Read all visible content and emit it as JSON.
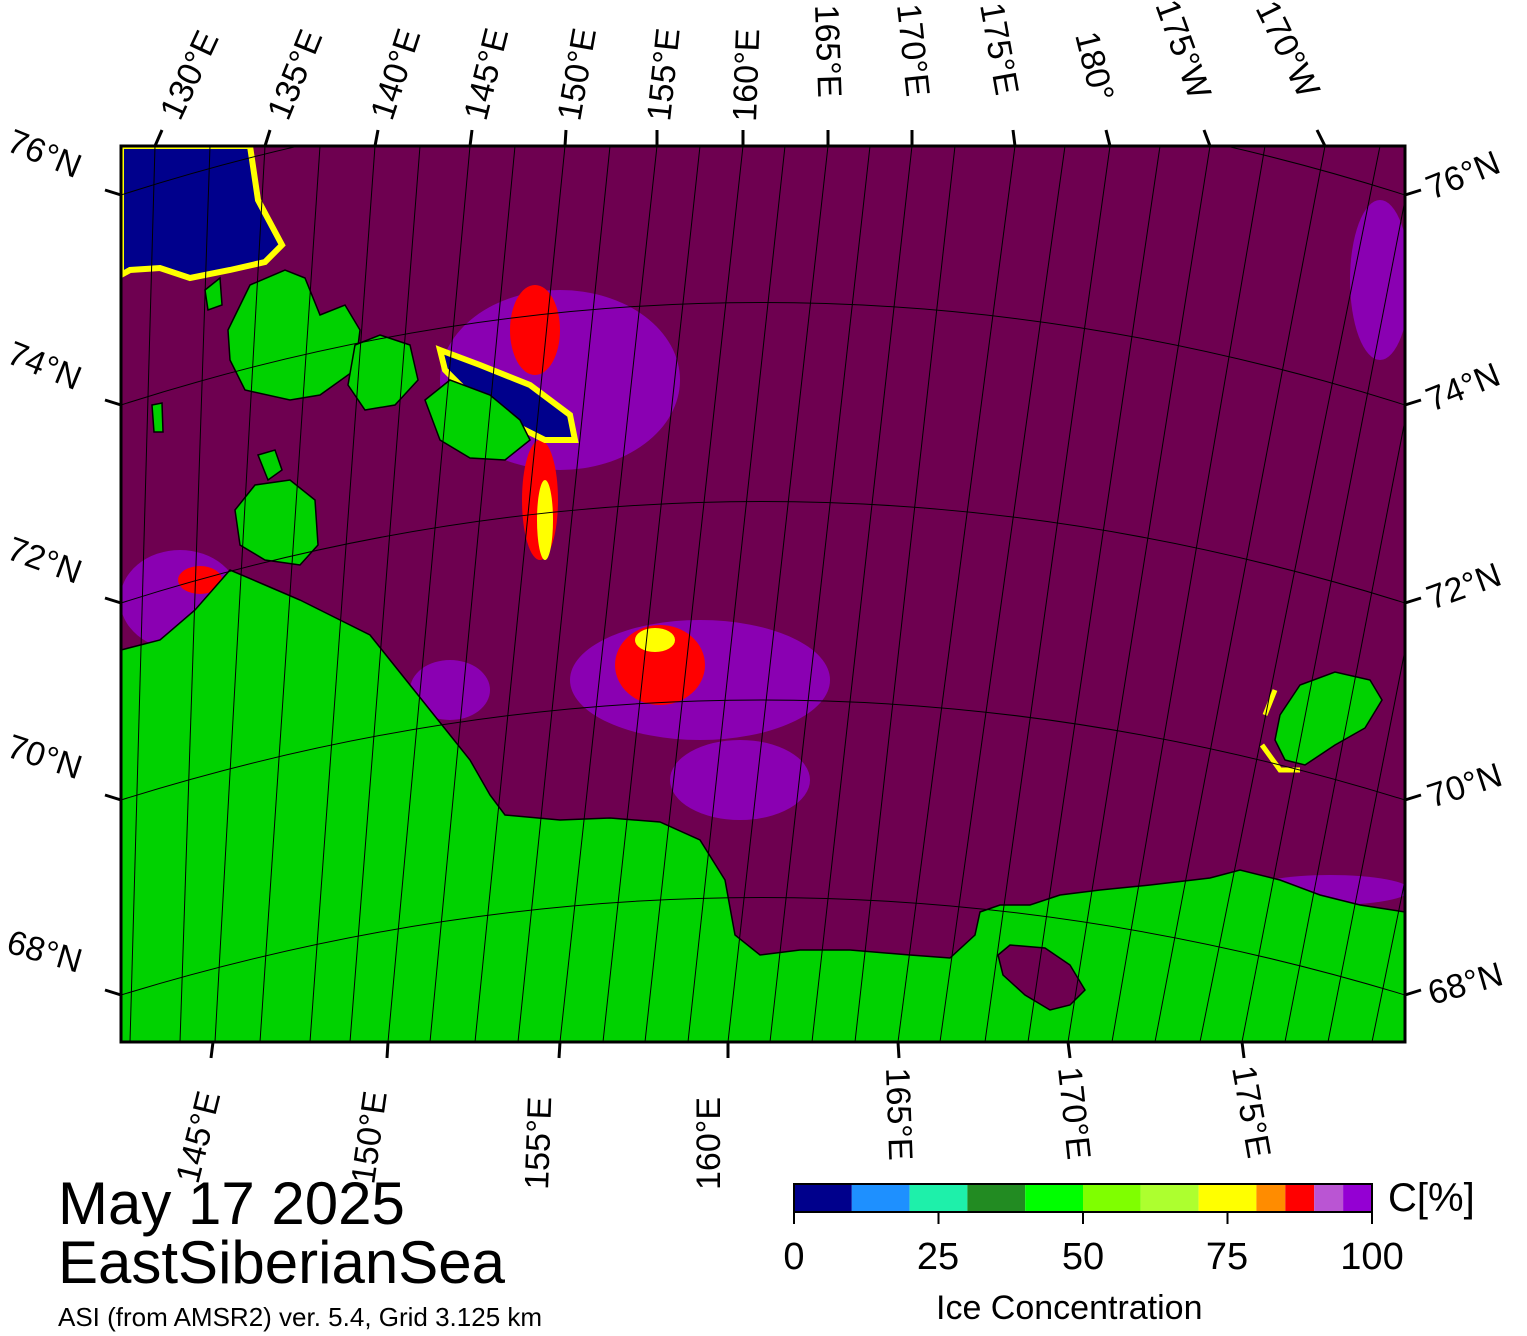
{
  "title": {
    "date": "May 17 2025",
    "region": "EastSiberianSea",
    "product": "ASI (from AMSR2) ver. 5.4,  Grid 3.125 km"
  },
  "map": {
    "top_longitude_labels": [
      "130°E",
      "135°E",
      "140°E",
      "145°E",
      "150°E",
      "155°E",
      "160°E",
      "165°E",
      "170°E",
      "175°E",
      "180°",
      "175°W",
      "170°W"
    ],
    "bottom_longitude_labels": [
      "145°E",
      "150°E",
      "155°E",
      "160°E",
      "165°E",
      "170°E",
      "175°E"
    ],
    "left_latitude_labels": [
      "76°N",
      "74°N",
      "72°N",
      "70°N",
      "68°N"
    ],
    "right_latitude_labels": [
      "76°N",
      "74°N",
      "72°N",
      "70°N",
      "68°N"
    ],
    "colors": {
      "sea_ice_100": "#6e0050",
      "land": "#00d200",
      "land_mask_grey": "#8c8c8c",
      "open_water": "#000080"
    }
  },
  "colorbar": {
    "title": "Ice Concentration",
    "unit": "C[%]",
    "tick_labels": [
      "0",
      "25",
      "50",
      "75",
      "100"
    ],
    "colors": [
      "#00008c",
      "#1e90ff",
      "#1ef0aa",
      "#228b22",
      "#00ff00",
      "#7fff00",
      "#adff2f",
      "#ffff00",
      "#ff8c00",
      "#ff0000",
      "#ba55d3",
      "#9400d3"
    ]
  }
}
